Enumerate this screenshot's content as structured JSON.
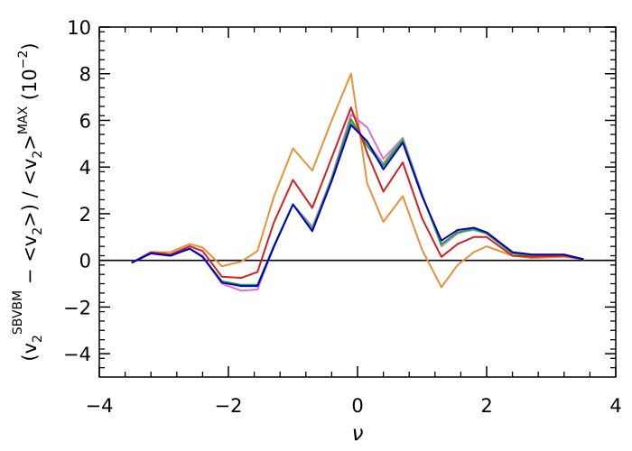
{
  "chart_data": {
    "type": "line",
    "xlabel": "ν",
    "ylabel": {
      "base": "(v",
      "sub1": "2",
      "sup1": "SBVBM",
      "middle": " − <v",
      "sub2": "2",
      "middle2": ">) / <v",
      "sub3": "2",
      "middle3": ">",
      "sup2": "MAX",
      "tail": " (10",
      "sup3": "−2",
      "end": ")"
    },
    "xlim": [
      -4,
      4
    ],
    "ylim": [
      -5,
      10
    ],
    "xticks": [
      -4,
      -2,
      0,
      2,
      4
    ],
    "xtick_labels": [
      "−4",
      "−2",
      "0",
      "2",
      "4"
    ],
    "yticks": [
      -4,
      -2,
      0,
      2,
      4,
      6,
      8,
      10
    ],
    "ytick_labels": [
      "−4",
      "−2",
      "0",
      "2",
      "4",
      "6",
      "8",
      "10"
    ],
    "x_minor_step": 0.4,
    "y_minor_step": 0.4,
    "zero_line": true,
    "x": [
      -3.5,
      -3.2,
      -2.9,
      -2.6,
      -2.4,
      -2.1,
      -1.8,
      -1.55,
      -1.3,
      -1.0,
      -0.7,
      -0.4,
      -0.1,
      0.15,
      0.4,
      0.7,
      1.0,
      1.3,
      1.55,
      1.8,
      2.0,
      2.4,
      2.7,
      3.2,
      3.5
    ],
    "series": [
      {
        "color": "#e8913a",
        "values": [
          -0.1,
          0.35,
          0.35,
          0.7,
          0.55,
          -0.25,
          -0.05,
          0.4,
          2.7,
          4.8,
          3.85,
          6.0,
          8.0,
          3.3,
          1.65,
          2.75,
          0.45,
          -1.15,
          -0.2,
          0.35,
          0.6,
          0.2,
          0.1,
          0.15,
          0.05
        ]
      },
      {
        "color": "#da70d6",
        "values": [
          -0.1,
          0.3,
          0.2,
          0.5,
          0.2,
          -1.0,
          -1.3,
          -1.25,
          0.6,
          2.4,
          1.4,
          3.55,
          6.25,
          5.7,
          4.35,
          5.25,
          2.85,
          0.6,
          1.15,
          1.35,
          1.2,
          0.35,
          0.25,
          0.25,
          0.05
        ]
      },
      {
        "color": "#9b9b9b",
        "values": [
          -0.1,
          0.3,
          0.2,
          0.5,
          0.15,
          -0.9,
          -1.1,
          -1.1,
          0.6,
          2.4,
          1.45,
          3.45,
          5.9,
          5.05,
          4.15,
          5.25,
          2.8,
          0.65,
          1.2,
          1.3,
          1.15,
          0.3,
          0.2,
          0.2,
          0.05
        ]
      },
      {
        "color": "#22aa22",
        "values": [
          -0.1,
          0.3,
          0.2,
          0.5,
          0.15,
          -0.9,
          -1.05,
          -1.05,
          0.6,
          2.4,
          1.3,
          3.5,
          6.05,
          4.9,
          4.05,
          5.15,
          2.8,
          0.7,
          1.2,
          1.35,
          1.15,
          0.3,
          0.2,
          0.2,
          0.05
        ]
      },
      {
        "color": "#d42020",
        "values": [
          -0.1,
          0.35,
          0.25,
          0.6,
          0.4,
          -0.7,
          -0.75,
          -0.5,
          1.6,
          3.45,
          2.25,
          4.4,
          6.55,
          4.6,
          2.95,
          4.2,
          1.8,
          0.15,
          0.7,
          1.0,
          1.0,
          0.2,
          0.15,
          0.2,
          0.05
        ]
      },
      {
        "color": "#0000cc",
        "values": [
          -0.1,
          0.3,
          0.2,
          0.5,
          0.15,
          -0.95,
          -1.1,
          -1.1,
          0.55,
          2.4,
          1.25,
          3.4,
          5.8,
          5.1,
          3.9,
          5.05,
          2.75,
          0.85,
          1.3,
          1.4,
          1.2,
          0.35,
          0.25,
          0.25,
          0.05
        ]
      }
    ],
    "legend": "none",
    "grid": false
  }
}
